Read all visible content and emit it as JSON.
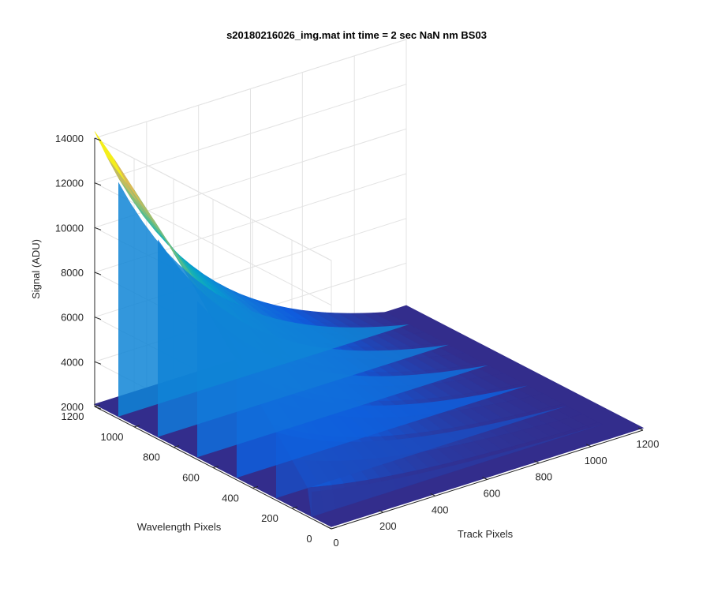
{
  "chart_data": {
    "type": "surface",
    "title": "s20180216026_img.mat int time = 2 sec  NaN nm BS03",
    "xlabel": "Track Pixels",
    "ylabel": "Wavelength Pixels",
    "zlabel": "Signal (ADU)",
    "xlim": [
      0,
      1200
    ],
    "ylim": [
      0,
      1200
    ],
    "zlim": [
      2000,
      14000
    ],
    "x_ticks": [
      "0",
      "200",
      "400",
      "600",
      "800",
      "1000",
      "1200"
    ],
    "y_ticks": [
      "0",
      "200",
      "400",
      "600",
      "800",
      "1000",
      "1200"
    ],
    "z_ticks": [
      "2000",
      "4000",
      "6000",
      "8000",
      "10000",
      "12000",
      "14000"
    ],
    "grid": true,
    "colormap": "parula",
    "baseline_signal": 2100,
    "ridge_profiles": [
      {
        "wavelength": 1200,
        "peak_signal": 14300
      },
      {
        "wavelength": 1100,
        "peak_signal": 13500
      },
      {
        "wavelength": 1000,
        "peak_signal": 12600
      },
      {
        "wavelength": 900,
        "peak_signal": 11700
      },
      {
        "wavelength": 800,
        "peak_signal": 10700
      },
      {
        "wavelength": 700,
        "peak_signal": 9700
      },
      {
        "wavelength": 600,
        "peak_signal": 8600
      },
      {
        "wavelength": 500,
        "peak_signal": 7500
      },
      {
        "wavelength": 400,
        "peak_signal": 6400
      },
      {
        "wavelength": 300,
        "peak_signal": 5300
      },
      {
        "wavelength": 200,
        "peak_signal": 4200
      },
      {
        "wavelength": 120,
        "peak_signal": 3300
      },
      {
        "wavelength": 100,
        "peak_signal": 2100
      }
    ],
    "ridge_track_start": 0,
    "ridge_track_end": 1120,
    "ridge_wavelength_start": 100,
    "ridge_wavelength_end": 1200,
    "colors": {
      "low": "#352a87",
      "mid": "#0f8bd6",
      "high": "#f9fb0e"
    }
  }
}
